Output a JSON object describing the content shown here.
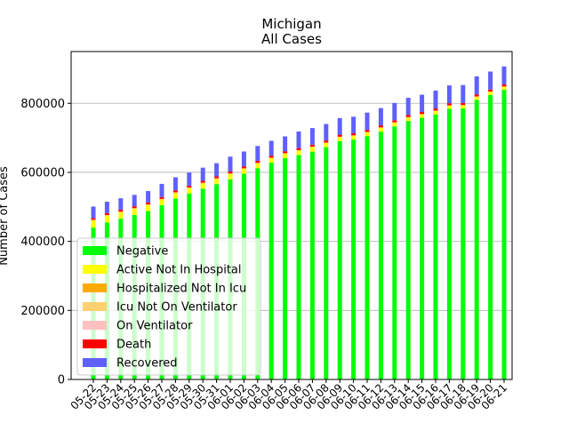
{
  "chart_data": {
    "type": "bar",
    "stacked": true,
    "title": "Michigan",
    "subtitle": "All Cases",
    "xlabel": "",
    "ylabel": "Number of Cases",
    "ylim": [
      0,
      950000
    ],
    "yticks": [
      0,
      200000,
      400000,
      600000,
      800000
    ],
    "ytick_labels": [
      "0",
      "200000",
      "400000",
      "600000",
      "800000"
    ],
    "grid": "horizontal",
    "legend_position": "lower-left",
    "categories": [
      "05-22",
      "05-23",
      "05-24",
      "05-25",
      "05-26",
      "05-27",
      "05-28",
      "05-29",
      "05-30",
      "05-31",
      "06-01",
      "06-02",
      "06-03",
      "06-04",
      "06-05",
      "06-06",
      "06-07",
      "06-08",
      "06-09",
      "06-10",
      "06-11",
      "06-12",
      "06-13",
      "06-14",
      "06-15",
      "06-16",
      "06-17",
      "06-18",
      "06-19",
      "06-20",
      "06-21"
    ],
    "series": [
      {
        "name": "Negative",
        "color": "#00ff00",
        "values": [
          440000,
          455000,
          466000,
          477000,
          488000,
          505000,
          524000,
          539000,
          553000,
          566000,
          580000,
          596000,
          612000,
          628000,
          641000,
          650000,
          660000,
          673000,
          690000,
          695000,
          705000,
          718000,
          733000,
          749000,
          758000,
          768000,
          784000,
          785000,
          810000,
          824000,
          839000
        ]
      },
      {
        "name": "Active Not In Hospital",
        "color": "#ffff00",
        "values": [
          20000,
          19000,
          18000,
          17000,
          17000,
          16000,
          16000,
          15000,
          15000,
          15000,
          15000,
          14000,
          14000,
          13000,
          13000,
          13000,
          13000,
          12000,
          12000,
          11000,
          11000,
          11000,
          11000,
          10000,
          10000,
          10000,
          9000,
          9000,
          9000,
          9000,
          9000
        ]
      },
      {
        "name": "Hospitalized Not In Icu",
        "color": "#ffaa00",
        "values": [
          1500,
          1400,
          1400,
          1300,
          1300,
          1200,
          1200,
          1100,
          1100,
          1000,
          1000,
          1000,
          900,
          900,
          800,
          800,
          800,
          700,
          700,
          700,
          600,
          600,
          600,
          600,
          500,
          500,
          500,
          500,
          500,
          500,
          500
        ]
      },
      {
        "name": "Icu Not On Ventilator",
        "color": "#ffd070",
        "values": [
          700,
          700,
          700,
          600,
          600,
          600,
          600,
          500,
          500,
          500,
          500,
          500,
          400,
          400,
          400,
          400,
          400,
          400,
          300,
          300,
          300,
          300,
          300,
          300,
          300,
          300,
          300,
          300,
          300,
          300,
          300
        ]
      },
      {
        "name": "On Ventilator",
        "color": "#ffc0c0",
        "values": [
          500,
          500,
          500,
          500,
          500,
          400,
          400,
          400,
          400,
          400,
          400,
          300,
          300,
          300,
          300,
          300,
          300,
          300,
          300,
          300,
          300,
          300,
          200,
          200,
          200,
          200,
          200,
          200,
          200,
          200,
          200
        ]
      },
      {
        "name": "Death",
        "color": "#ff0000",
        "values": [
          5200,
          5300,
          5300,
          5300,
          5400,
          5400,
          5500,
          5500,
          5600,
          5600,
          5600,
          5600,
          5700,
          5700,
          5700,
          5800,
          5800,
          5800,
          5800,
          5900,
          5900,
          5900,
          5900,
          5900,
          6000,
          6000,
          6000,
          6000,
          6000,
          6000,
          6000
        ]
      },
      {
        "name": "Recovered",
        "color": "#6060ff",
        "values": [
          33000,
          33000,
          33000,
          33000,
          33000,
          38000,
          38000,
          38000,
          38000,
          38000,
          43000,
          43000,
          43000,
          43000,
          43000,
          48000,
          48000,
          48000,
          48000,
          48000,
          50000,
          50000,
          50000,
          50000,
          50000,
          52000,
          52000,
          52000,
          52000,
          52000,
          52000
        ]
      }
    ]
  }
}
